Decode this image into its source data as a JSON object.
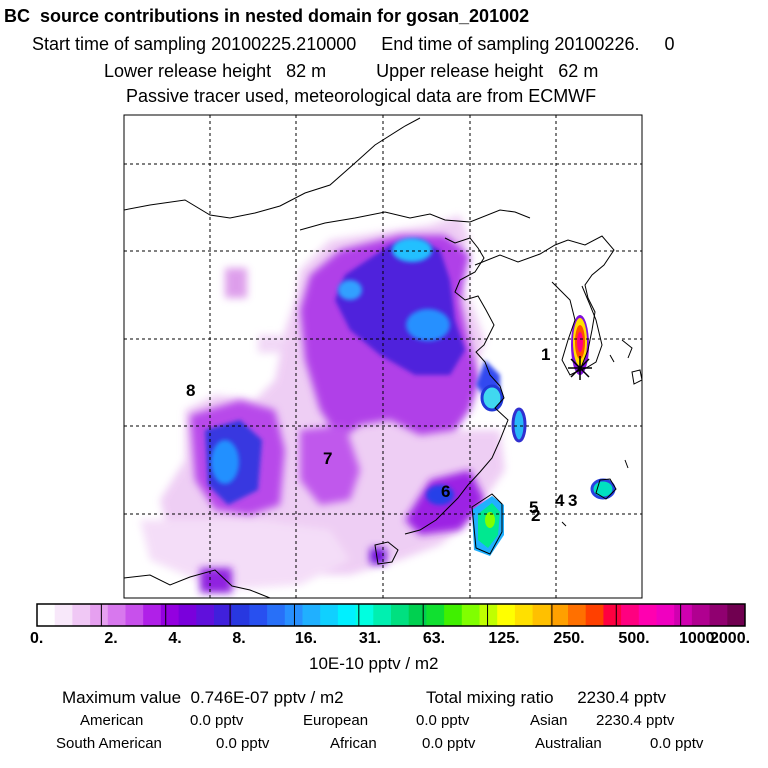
{
  "header": {
    "title": "BC  source contributions in nested domain for gosan_201002",
    "start_label": "Start time of sampling",
    "start_value": "20100225.210000",
    "end_label": "End time of sampling",
    "end_value": "20100226.",
    "end_extra": "0",
    "lower_label": "Lower release height",
    "lower_value": "82 m",
    "upper_label": "Upper release height",
    "upper_value": "62 m",
    "note": "Passive tracer used, meteorological data are from ECMWF"
  },
  "map": {
    "receptor_marker": "star-icon",
    "source_labels": [
      "1",
      "2",
      "3",
      "4",
      "5",
      "6",
      "7",
      "8"
    ]
  },
  "colorbar": {
    "tick_labels": [
      "0.",
      "2.",
      "4.",
      "8.",
      "16.",
      "31.",
      "63.",
      "125.",
      "250.",
      "500.",
      "1000.",
      "2000."
    ],
    "units": "10E-10 pptv / m2",
    "colors": [
      "#ffffff",
      "#f8e8fa",
      "#f0c8f5",
      "#e6a0f0",
      "#d878ee",
      "#c850ec",
      "#b020e8",
      "#9400e0",
      "#7a00dc",
      "#6010dc",
      "#4020dc",
      "#2838e0",
      "#2850f0",
      "#2870f8",
      "#2890ff",
      "#20b0ff",
      "#10d0ff",
      "#00f0ff",
      "#00ffe0",
      "#00f0b0",
      "#00e080",
      "#00d050",
      "#10e030",
      "#40f000",
      "#80ff00",
      "#c0ff00",
      "#ffff00",
      "#ffe000",
      "#ffc000",
      "#ffa000",
      "#ff7000",
      "#ff4000",
      "#ff0040",
      "#ff0080",
      "#ff00b0",
      "#f000c0",
      "#d000b0",
      "#b00090",
      "#900070",
      "#700050"
    ]
  },
  "summary": {
    "max_label": "Maximum value",
    "max_value": "0.746E-07 pptv / m2",
    "total_label": "Total mixing ratio",
    "total_value": "2230.4 pptv",
    "regions": [
      {
        "name": "American",
        "value": "0.0 pptv"
      },
      {
        "name": "European",
        "value": "0.0 pptv"
      },
      {
        "name": "Asian",
        "value": "2230.4 pptv"
      },
      {
        "name": "South American",
        "value": "0.0 pptv"
      },
      {
        "name": "African",
        "value": "0.0 pptv"
      },
      {
        "name": "Australian",
        "value": "0.0 pptv"
      }
    ]
  }
}
